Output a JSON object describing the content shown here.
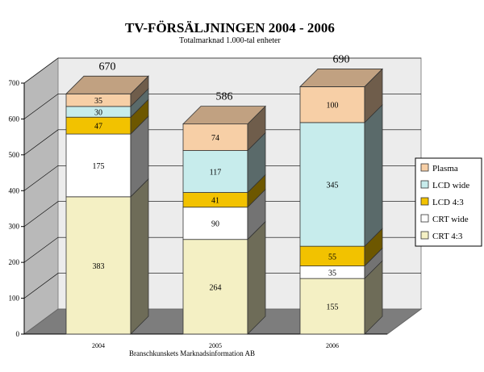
{
  "chart_data": {
    "type": "bar",
    "stacked": true,
    "title": "TV-FÖRSÄLJNINGEN 2004 - 2006",
    "subtitle": "Totalmarknad 1.000-tal enheter",
    "source": "Branschkunskets Marknadsinformation AB",
    "categories": [
      "2004",
      "2005",
      "2006"
    ],
    "totals": [
      "670",
      "586",
      "690"
    ],
    "ylim": [
      0,
      700
    ],
    "yticks": [
      "0",
      "100",
      "200",
      "300",
      "400",
      "500",
      "600",
      "700"
    ],
    "grid": true,
    "legend_position": "right",
    "series": [
      {
        "name": "CRT 4:3",
        "values": [
          383,
          264,
          155
        ],
        "color": "#f4f0c4"
      },
      {
        "name": "CRT wide",
        "values": [
          175,
          90,
          35
        ],
        "color": "#ffffff"
      },
      {
        "name": "LCD 4:3",
        "values": [
          47,
          41,
          55
        ],
        "color": "#f2c200"
      },
      {
        "name": "LCD wide",
        "values": [
          30,
          117,
          345
        ],
        "color": "#c7ecec"
      },
      {
        "name": "Plasma",
        "values": [
          35,
          74,
          100
        ],
        "color": "#f7cfa6"
      }
    ]
  }
}
